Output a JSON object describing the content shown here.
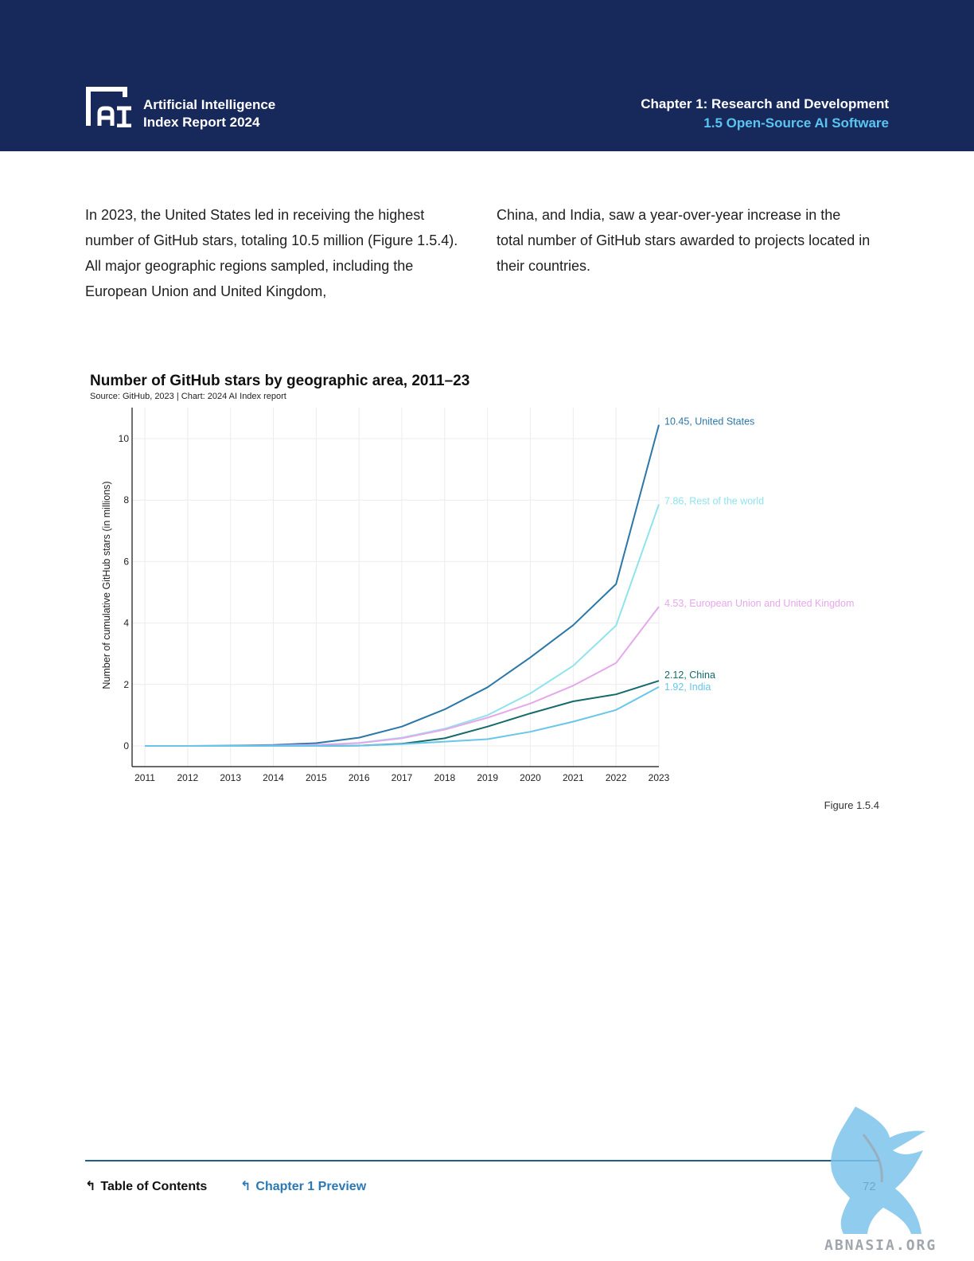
{
  "header": {
    "brand_line1": "Artificial Intelligence",
    "brand_line2": "Index Report 2024",
    "chapter_title": "Chapter 1: Research and Development",
    "section_title": "1.5 Open-Source AI Software",
    "logo_icon": "ai-index-logo-icon"
  },
  "body": {
    "paragraph_left": "In 2023, the United States led in receiving the highest number of GitHub stars, totaling 10.5 million (Figure 1.5.4). All major geographic regions sampled, including the European Union and United Kingdom,",
    "paragraph_right": "China, and India, saw a year-over-year increase in the total number of GitHub stars awarded to projects located in their countries."
  },
  "chart_data": {
    "type": "line",
    "title": "Number of GitHub stars by geographic area, 2011–23",
    "subtitle": "Source: GitHub, 2023 | Chart: 2024 AI Index report",
    "xlabel": "",
    "ylabel": "Number of cumulative GitHub stars (in millions)",
    "x": [
      2011,
      2012,
      2013,
      2014,
      2015,
      2016,
      2017,
      2018,
      2019,
      2020,
      2021,
      2022,
      2023
    ],
    "ylim": [
      0,
      11
    ],
    "yticks": [
      0,
      2,
      4,
      6,
      8,
      10
    ],
    "grid": true,
    "legend": "end-of-line labels",
    "series": [
      {
        "name": "United States",
        "color": "#2b77a8",
        "end_label": "10.45, United States",
        "values": [
          0.0,
          0.0,
          0.01,
          0.03,
          0.09,
          0.27,
          0.63,
          1.19,
          1.91,
          2.88,
          3.93,
          5.27,
          10.45
        ]
      },
      {
        "name": "Rest of the world",
        "color": "#8fe3ec",
        "end_label": "7.86, Rest of the world",
        "values": [
          0.0,
          0.0,
          0.0,
          0.01,
          0.03,
          0.1,
          0.27,
          0.56,
          1.0,
          1.71,
          2.61,
          3.92,
          7.86
        ]
      },
      {
        "name": "European Union and United Kingdom",
        "color": "#e6a8ec",
        "end_label": "4.53, European Union and United Kingdom",
        "values": [
          0.0,
          0.0,
          0.0,
          0.01,
          0.03,
          0.09,
          0.25,
          0.53,
          0.92,
          1.38,
          1.96,
          2.7,
          4.53
        ]
      },
      {
        "name": "China",
        "color": "#156a6a",
        "end_label": "2.12, China",
        "values": [
          0.0,
          0.0,
          0.0,
          0.0,
          0.0,
          0.01,
          0.07,
          0.25,
          0.63,
          1.06,
          1.45,
          1.68,
          2.12
        ]
      },
      {
        "name": "India",
        "color": "#67c6ea",
        "end_label": "1.92, India",
        "values": [
          0.0,
          0.0,
          0.0,
          0.0,
          0.0,
          0.01,
          0.06,
          0.14,
          0.22,
          0.46,
          0.79,
          1.17,
          1.92
        ]
      }
    ]
  },
  "figure_label": "Figure 1.5.4",
  "footer": {
    "toc_label": "Table of Contents",
    "chapter_preview_label": "Chapter 1 Preview",
    "page_number": "72",
    "back_icon": "return-arrow-icon"
  },
  "watermark": {
    "text": "ABNASIA.ORG",
    "icon": "griffin-watermark-icon"
  }
}
